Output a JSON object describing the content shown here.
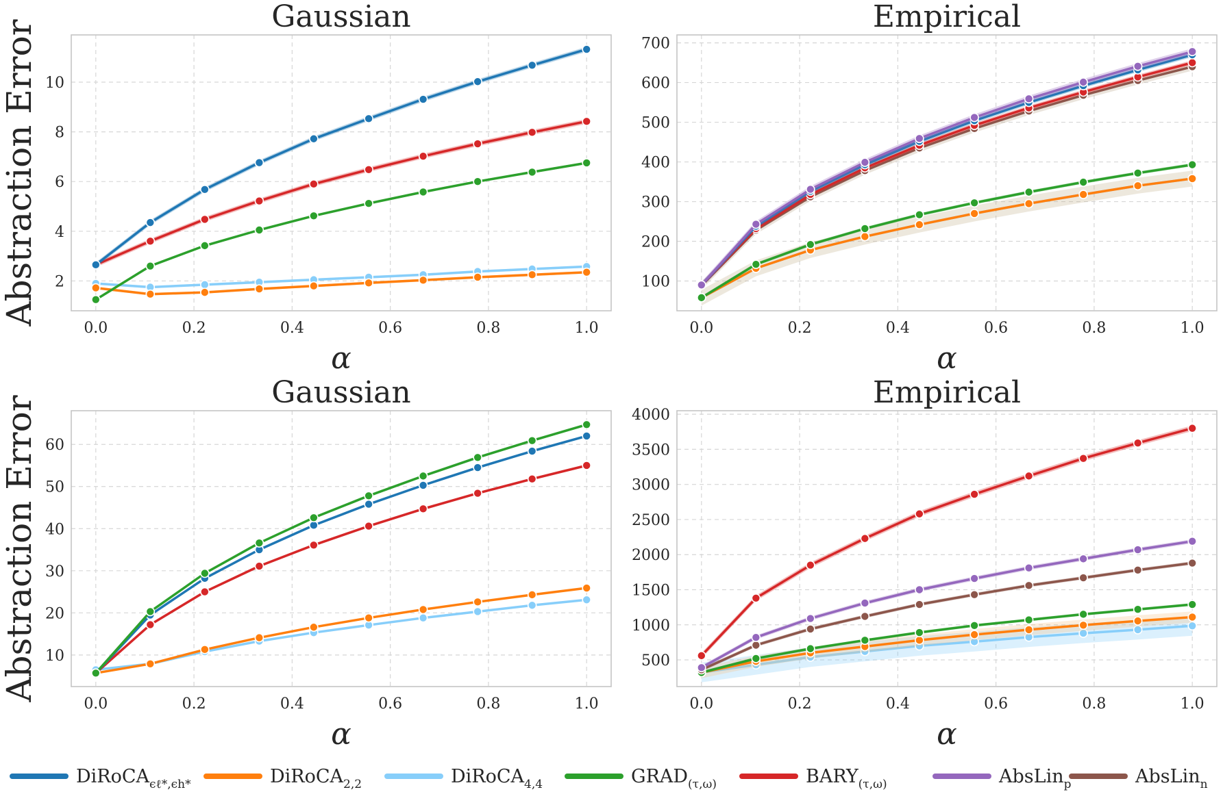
{
  "legend": [
    {
      "key": "diroca_eps",
      "label": "DiRoCA",
      "sub": "ϵℓ*,ϵh*",
      "color": "#1f77b4"
    },
    {
      "key": "diroca22",
      "label": "DiRoCA",
      "sub": "2,2",
      "color": "#ff7f0e"
    },
    {
      "key": "diroca44",
      "label": "DiRoCA",
      "sub": "4,4",
      "color": "#87cefa"
    },
    {
      "key": "grad",
      "label": "GRAD",
      "sub": "(τ,ω)",
      "color": "#2ca02c"
    },
    {
      "key": "bary",
      "label": "BARY",
      "sub": "(τ,ω)",
      "color": "#d62728"
    },
    {
      "key": "abslin_p",
      "label": "AbsLin",
      "sub": "p",
      "color": "#9467bd"
    },
    {
      "key": "abslin_n",
      "label": "AbsLin",
      "sub": "n",
      "color": "#8c564b"
    }
  ],
  "chart_data": [
    {
      "type": "line",
      "title": "Gaussian",
      "xlabel": "α",
      "ylabel": "Abstraction Error",
      "xlim": [
        -0.05,
        1.05
      ],
      "ylim": [
        0.8,
        11.9
      ],
      "xticks": [
        0.0,
        0.2,
        0.4,
        0.6,
        0.8,
        1.0
      ],
      "xticklabels": [
        "0.0",
        "0.2",
        "0.4",
        "0.6",
        "0.8",
        "1.0"
      ],
      "yticks": [
        2,
        4,
        6,
        8,
        10
      ],
      "yticklabels": [
        "2",
        "4",
        "6",
        "8",
        "10"
      ],
      "x": [
        0.0,
        0.111,
        0.222,
        0.333,
        0.444,
        0.556,
        0.667,
        0.778,
        0.889,
        1.0
      ],
      "series": [
        {
          "key": "diroca44",
          "values": [
            1.9,
            1.75,
            1.85,
            1.95,
            2.05,
            2.15,
            2.25,
            2.38,
            2.48,
            2.58
          ],
          "band": 0.05
        },
        {
          "key": "diroca22",
          "values": [
            1.72,
            1.47,
            1.54,
            1.68,
            1.8,
            1.92,
            2.03,
            2.15,
            2.25,
            2.35
          ],
          "band": 0.05
        },
        {
          "key": "grad",
          "values": [
            1.25,
            2.6,
            3.42,
            4.05,
            4.62,
            5.12,
            5.58,
            6.0,
            6.38,
            6.75
          ],
          "band": 0.05
        },
        {
          "key": "bary",
          "values": [
            2.65,
            3.6,
            4.48,
            5.22,
            5.9,
            6.48,
            7.02,
            7.52,
            7.98,
            8.42
          ],
          "band": 0.1
        },
        {
          "key": "diroca_eps",
          "values": [
            2.65,
            4.35,
            5.68,
            6.76,
            7.72,
            8.53,
            9.31,
            10.02,
            10.68,
            11.32
          ],
          "band": 0.1
        }
      ]
    },
    {
      "type": "line",
      "title": "Empirical",
      "xlabel": "α",
      "ylabel": "",
      "xlim": [
        -0.05,
        1.05
      ],
      "ylim": [
        25,
        720
      ],
      "xticks": [
        0.0,
        0.2,
        0.4,
        0.6,
        0.8,
        1.0
      ],
      "xticklabels": [
        "0.0",
        "0.2",
        "0.4",
        "0.6",
        "0.8",
        "1.0"
      ],
      "yticks": [
        100,
        200,
        300,
        400,
        500,
        600,
        700
      ],
      "yticklabels": [
        "100",
        "200",
        "300",
        "400",
        "500",
        "600",
        "700"
      ],
      "x": [
        0.0,
        0.111,
        0.222,
        0.333,
        0.444,
        0.556,
        0.667,
        0.778,
        0.889,
        1.0
      ],
      "series": [
        {
          "key": "abslin_n",
          "values": [
            88,
            228,
            312,
            378,
            435,
            484,
            528,
            568,
            605,
            640
          ],
          "band": 10,
          "bandColor": "#b8a58a"
        },
        {
          "key": "diroca44",
          "values": [
            58,
            132,
            178,
            212,
            242,
            270,
            295,
            318,
            340,
            358
          ],
          "band": 20,
          "bandColor": "#c2b38f"
        },
        {
          "key": "diroca22",
          "values": [
            58,
            132,
            178,
            212,
            242,
            270,
            295,
            318,
            340,
            358
          ],
          "band": 0
        },
        {
          "key": "grad",
          "values": [
            58,
            142,
            192,
            232,
            267,
            297,
            324,
            349,
            372,
            393
          ],
          "band": 4
        },
        {
          "key": "bary",
          "values": [
            90,
            232,
            318,
            385,
            442,
            492,
            536,
            576,
            614,
            650
          ],
          "band": 6
        },
        {
          "key": "diroca_eps",
          "values": [
            90,
            238,
            326,
            393,
            452,
            504,
            550,
            592,
            632,
            670
          ],
          "band": 6
        },
        {
          "key": "abslin_p",
          "values": [
            90,
            243,
            331,
            399,
            459,
            512,
            559,
            601,
            641,
            678
          ],
          "band": 8
        }
      ]
    },
    {
      "type": "line",
      "title": "Gaussian",
      "xlabel": "α",
      "ylabel": "Abstraction Error",
      "xlim": [
        -0.05,
        1.05
      ],
      "ylim": [
        2.5,
        68
      ],
      "xticks": [
        0.0,
        0.2,
        0.4,
        0.6,
        0.8,
        1.0
      ],
      "xticklabels": [
        "0.0",
        "0.2",
        "0.4",
        "0.6",
        "0.8",
        "1.0"
      ],
      "yticks": [
        10,
        20,
        30,
        40,
        50,
        60
      ],
      "yticklabels": [
        "10",
        "20",
        "30",
        "40",
        "50",
        "60"
      ],
      "x": [
        0.0,
        0.111,
        0.222,
        0.333,
        0.444,
        0.556,
        0.667,
        0.778,
        0.889,
        1.0
      ],
      "series": [
        {
          "key": "diroca44",
          "values": [
            6.5,
            7.9,
            10.8,
            13.3,
            15.3,
            17.1,
            18.8,
            20.3,
            21.8,
            23.1
          ],
          "band": 0.2
        },
        {
          "key": "diroca22",
          "values": [
            5.7,
            7.9,
            11.3,
            14.1,
            16.6,
            18.8,
            20.8,
            22.6,
            24.3,
            25.9
          ],
          "band": 0.2
        },
        {
          "key": "bary",
          "values": [
            5.7,
            17.2,
            25.0,
            31.1,
            36.1,
            40.6,
            44.7,
            48.4,
            51.8,
            55.0
          ],
          "band": 0.3
        },
        {
          "key": "diroca_eps",
          "values": [
            5.7,
            19.5,
            28.2,
            35.0,
            40.8,
            45.8,
            50.3,
            54.5,
            58.4,
            62.0
          ],
          "band": 0.3
        },
        {
          "key": "grad",
          "values": [
            5.7,
            20.3,
            29.4,
            36.6,
            42.6,
            47.8,
            52.5,
            56.9,
            60.9,
            64.7
          ],
          "band": 0.3
        }
      ]
    },
    {
      "type": "line",
      "title": "Empirical",
      "xlabel": "α",
      "ylabel": "",
      "xlim": [
        -0.05,
        1.05
      ],
      "ylim": [
        120,
        4050
      ],
      "xticks": [
        0.0,
        0.2,
        0.4,
        0.6,
        0.8,
        1.0
      ],
      "xticklabels": [
        "0.0",
        "0.2",
        "0.4",
        "0.6",
        "0.8",
        "1.0"
      ],
      "yticks": [
        500,
        1000,
        1500,
        2000,
        2500,
        3000,
        3500,
        4000
      ],
      "yticklabels": [
        "500",
        "1000",
        "1500",
        "2000",
        "2500",
        "3000",
        "3500",
        "4000"
      ],
      "x": [
        0.0,
        0.111,
        0.222,
        0.333,
        0.444,
        0.556,
        0.667,
        0.778,
        0.889,
        1.0
      ],
      "series": [
        {
          "key": "diroca44",
          "values": [
            320,
            430,
            540,
            620,
            700,
            760,
            825,
            880,
            930,
            985
          ],
          "band": 140,
          "bandColor": "#87cefa"
        },
        {
          "key": "diroca22",
          "values": [
            320,
            480,
            600,
            690,
            780,
            860,
            930,
            995,
            1055,
            1110
          ],
          "band": 80,
          "bandColor": "#f5c48a"
        },
        {
          "key": "grad",
          "values": [
            320,
            520,
            660,
            780,
            890,
            990,
            1070,
            1150,
            1220,
            1290
          ],
          "band": 20
        },
        {
          "key": "abslin_n",
          "values": [
            360,
            710,
            940,
            1120,
            1290,
            1430,
            1560,
            1670,
            1780,
            1880
          ],
          "band": 25
        },
        {
          "key": "abslin_p",
          "values": [
            390,
            820,
            1090,
            1310,
            1500,
            1660,
            1810,
            1940,
            2070,
            2190
          ],
          "band": 30
        },
        {
          "key": "bary",
          "values": [
            560,
            1380,
            1850,
            2230,
            2580,
            2860,
            3120,
            3370,
            3590,
            3800
          ],
          "band": 40
        }
      ]
    }
  ]
}
